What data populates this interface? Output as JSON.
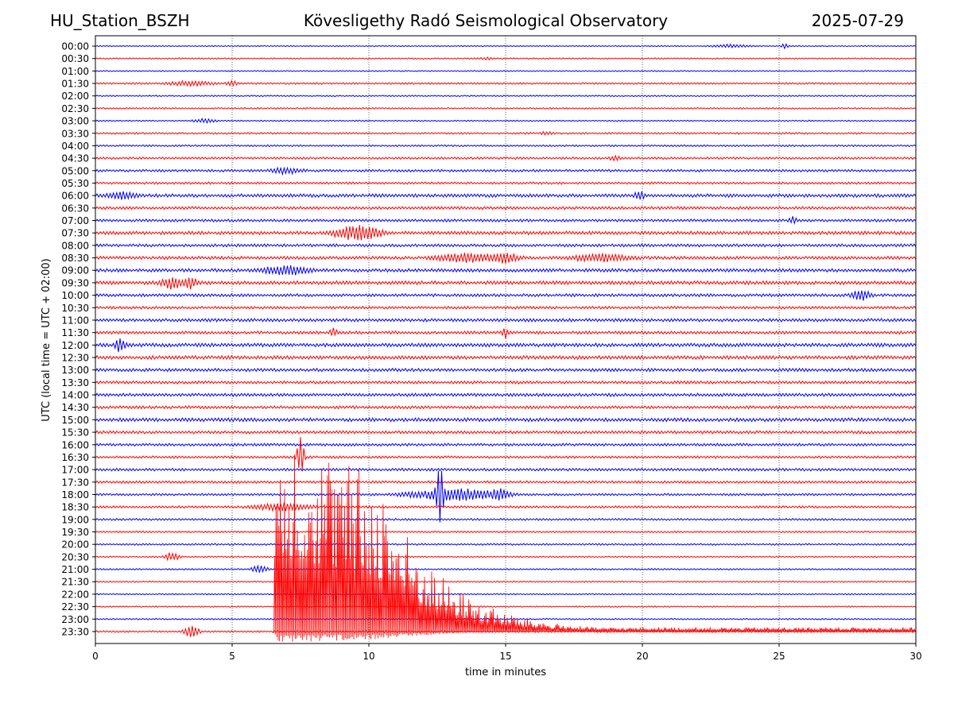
{
  "header": {
    "station": "HU_Station_BSZH",
    "observatory": "Kövesligethy Radó Seismological Observatory",
    "date": "2025-07-29"
  },
  "chart_data": {
    "type": "line",
    "title": "Kövesligethy Radó Seismological Observatory",
    "xlabel": "time in minutes",
    "ylabel": "UTC (local time = UTC + 02:00)",
    "xlim": [
      0,
      30
    ],
    "xticks": [
      "0",
      "5",
      "10",
      "15",
      "20",
      "25",
      "30"
    ],
    "vertical_gridlines_at": [
      5,
      10,
      15,
      20,
      25
    ],
    "trace_colors": [
      "#0000ff",
      "#ff0000"
    ],
    "rows": [
      "00:00",
      "00:30",
      "01:00",
      "01:30",
      "02:00",
      "02:30",
      "03:00",
      "03:30",
      "04:00",
      "04:30",
      "05:00",
      "05:30",
      "06:00",
      "06:30",
      "07:00",
      "07:30",
      "08:00",
      "08:30",
      "09:00",
      "09:30",
      "10:00",
      "10:30",
      "11:00",
      "11:30",
      "12:00",
      "12:30",
      "13:00",
      "13:30",
      "14:00",
      "14:30",
      "15:00",
      "15:30",
      "16:00",
      "16:30",
      "17:00",
      "17:30",
      "18:00",
      "18:30",
      "19:00",
      "19:30",
      "20:00",
      "20:30",
      "21:00",
      "21:30",
      "22:00",
      "22:30",
      "23:00",
      "23:30"
    ],
    "base_noise": [
      0.5,
      0.6,
      0.5,
      0.8,
      0.6,
      0.7,
      0.6,
      0.8,
      0.8,
      1.0,
      1.1,
      1.0,
      1.5,
      1.3,
      1.2,
      1.5,
      1.3,
      1.4,
      1.5,
      1.6,
      1.3,
      1.2,
      1.4,
      1.3,
      1.6,
      1.6,
      1.4,
      1.3,
      1.4,
      1.3,
      1.6,
      1.3,
      1.2,
      1.1,
      1.2,
      1.1,
      1.0,
      1.0,
      0.9,
      0.8,
      0.8,
      0.6,
      0.7,
      0.6,
      0.6,
      0.6,
      0.6,
      0.8
    ],
    "events": [
      {
        "row": 0,
        "minute": 23.2,
        "amplitude": 2,
        "duration": 1.0
      },
      {
        "row": 0,
        "minute": 25.2,
        "amplitude": 4,
        "duration": 0.2
      },
      {
        "row": 1,
        "minute": 14.3,
        "amplitude": 1.5,
        "duration": 0.5
      },
      {
        "row": 3,
        "minute": 3.5,
        "amplitude": 3,
        "duration": 1.2
      },
      {
        "row": 3,
        "minute": 5.0,
        "amplitude": 3,
        "duration": 0.3
      },
      {
        "row": 6,
        "minute": 4.0,
        "amplitude": 3,
        "duration": 0.6
      },
      {
        "row": 7,
        "minute": 16.5,
        "amplitude": 2,
        "duration": 0.3
      },
      {
        "row": 9,
        "minute": 19.0,
        "amplitude": 3,
        "duration": 0.3
      },
      {
        "row": 10,
        "minute": 7.0,
        "amplitude": 4,
        "duration": 0.8
      },
      {
        "row": 12,
        "minute": 19.9,
        "amplitude": 6,
        "duration": 0.3
      },
      {
        "row": 12,
        "minute": 1.0,
        "amplitude": 4,
        "duration": 0.8
      },
      {
        "row": 14,
        "minute": 25.5,
        "amplitude": 4,
        "duration": 0.2
      },
      {
        "row": 15,
        "minute": 9.6,
        "amplitude": 10,
        "duration": 1.2
      },
      {
        "row": 17,
        "minute": 13.5,
        "amplitude": 6,
        "duration": 1.5
      },
      {
        "row": 17,
        "minute": 15.0,
        "amplitude": 6,
        "duration": 0.8
      },
      {
        "row": 17,
        "minute": 18.5,
        "amplitude": 5,
        "duration": 1.5
      },
      {
        "row": 18,
        "minute": 7.0,
        "amplitude": 6,
        "duration": 1.2
      },
      {
        "row": 19,
        "minute": 2.8,
        "amplitude": 8,
        "duration": 0.6
      },
      {
        "row": 19,
        "minute": 3.5,
        "amplitude": 9,
        "duration": 0.3
      },
      {
        "row": 20,
        "minute": 28.0,
        "amplitude": 7,
        "duration": 0.5
      },
      {
        "row": 23,
        "minute": 8.7,
        "amplitude": 6,
        "duration": 0.2
      },
      {
        "row": 23,
        "minute": 15.0,
        "amplitude": 6,
        "duration": 0.2
      },
      {
        "row": 24,
        "minute": 0.9,
        "amplitude": 9,
        "duration": 0.3
      },
      {
        "row": 33,
        "minute": 7.5,
        "amplitude": 30,
        "duration": 0.2
      },
      {
        "row": 36,
        "minute": 12.6,
        "amplitude": 40,
        "duration": 0.2
      },
      {
        "row": 36,
        "minute": 13.2,
        "amplitude": 8,
        "duration": 2.5
      },
      {
        "row": 36,
        "minute": 14.8,
        "amplitude": 6,
        "duration": 0.4
      },
      {
        "row": 37,
        "minute": 6.8,
        "amplitude": 5,
        "duration": 1.5
      },
      {
        "row": 41,
        "minute": 2.8,
        "amplitude": 6,
        "duration": 0.4
      },
      {
        "row": 42,
        "minute": 6.0,
        "amplitude": 6,
        "duration": 0.4
      },
      {
        "row": 47,
        "minute": 3.5,
        "amplitude": 8,
        "duration": 0.4
      }
    ],
    "large_earthquake": {
      "row": 47,
      "onset_minute": 6.5,
      "peak_amplitude_rows": 8,
      "coda_end_minute": 30
    }
  }
}
